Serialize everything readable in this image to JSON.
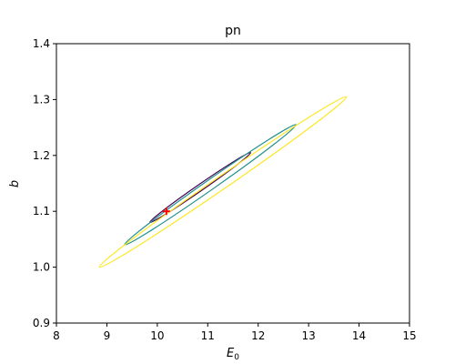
{
  "chart_data": {
    "type": "contour",
    "title": "pn",
    "xlabel_main": "E",
    "xlabel_sub": "0",
    "ylabel": "b",
    "xlim": [
      8,
      15
    ],
    "ylim": [
      0.9,
      1.4
    ],
    "xticks": [
      "8",
      "9",
      "10",
      "11",
      "12",
      "13",
      "14",
      "15"
    ],
    "yticks": [
      "0.9",
      "1.0",
      "1.1",
      "1.2",
      "1.3",
      "1.4"
    ],
    "grid": false,
    "best_fit": {
      "x": 10.18,
      "y": 1.1,
      "marker": "+",
      "color": "#ff0000"
    },
    "contours": [
      {
        "level": "inner",
        "color": "#440154",
        "endpoints": [
          [
            9.85,
            1.08
          ],
          [
            11.85,
            1.205
          ]
        ],
        "half_width": 0.18
      },
      {
        "level": "middle",
        "color": "#21918c",
        "endpoints": [
          [
            9.35,
            1.04
          ],
          [
            12.75,
            1.255
          ]
        ],
        "half_width": 0.28
      },
      {
        "level": "outer",
        "color": "#fde725",
        "endpoints": [
          [
            8.85,
            1.0
          ],
          [
            13.75,
            1.305
          ]
        ],
        "half_width": 0.36
      }
    ]
  }
}
